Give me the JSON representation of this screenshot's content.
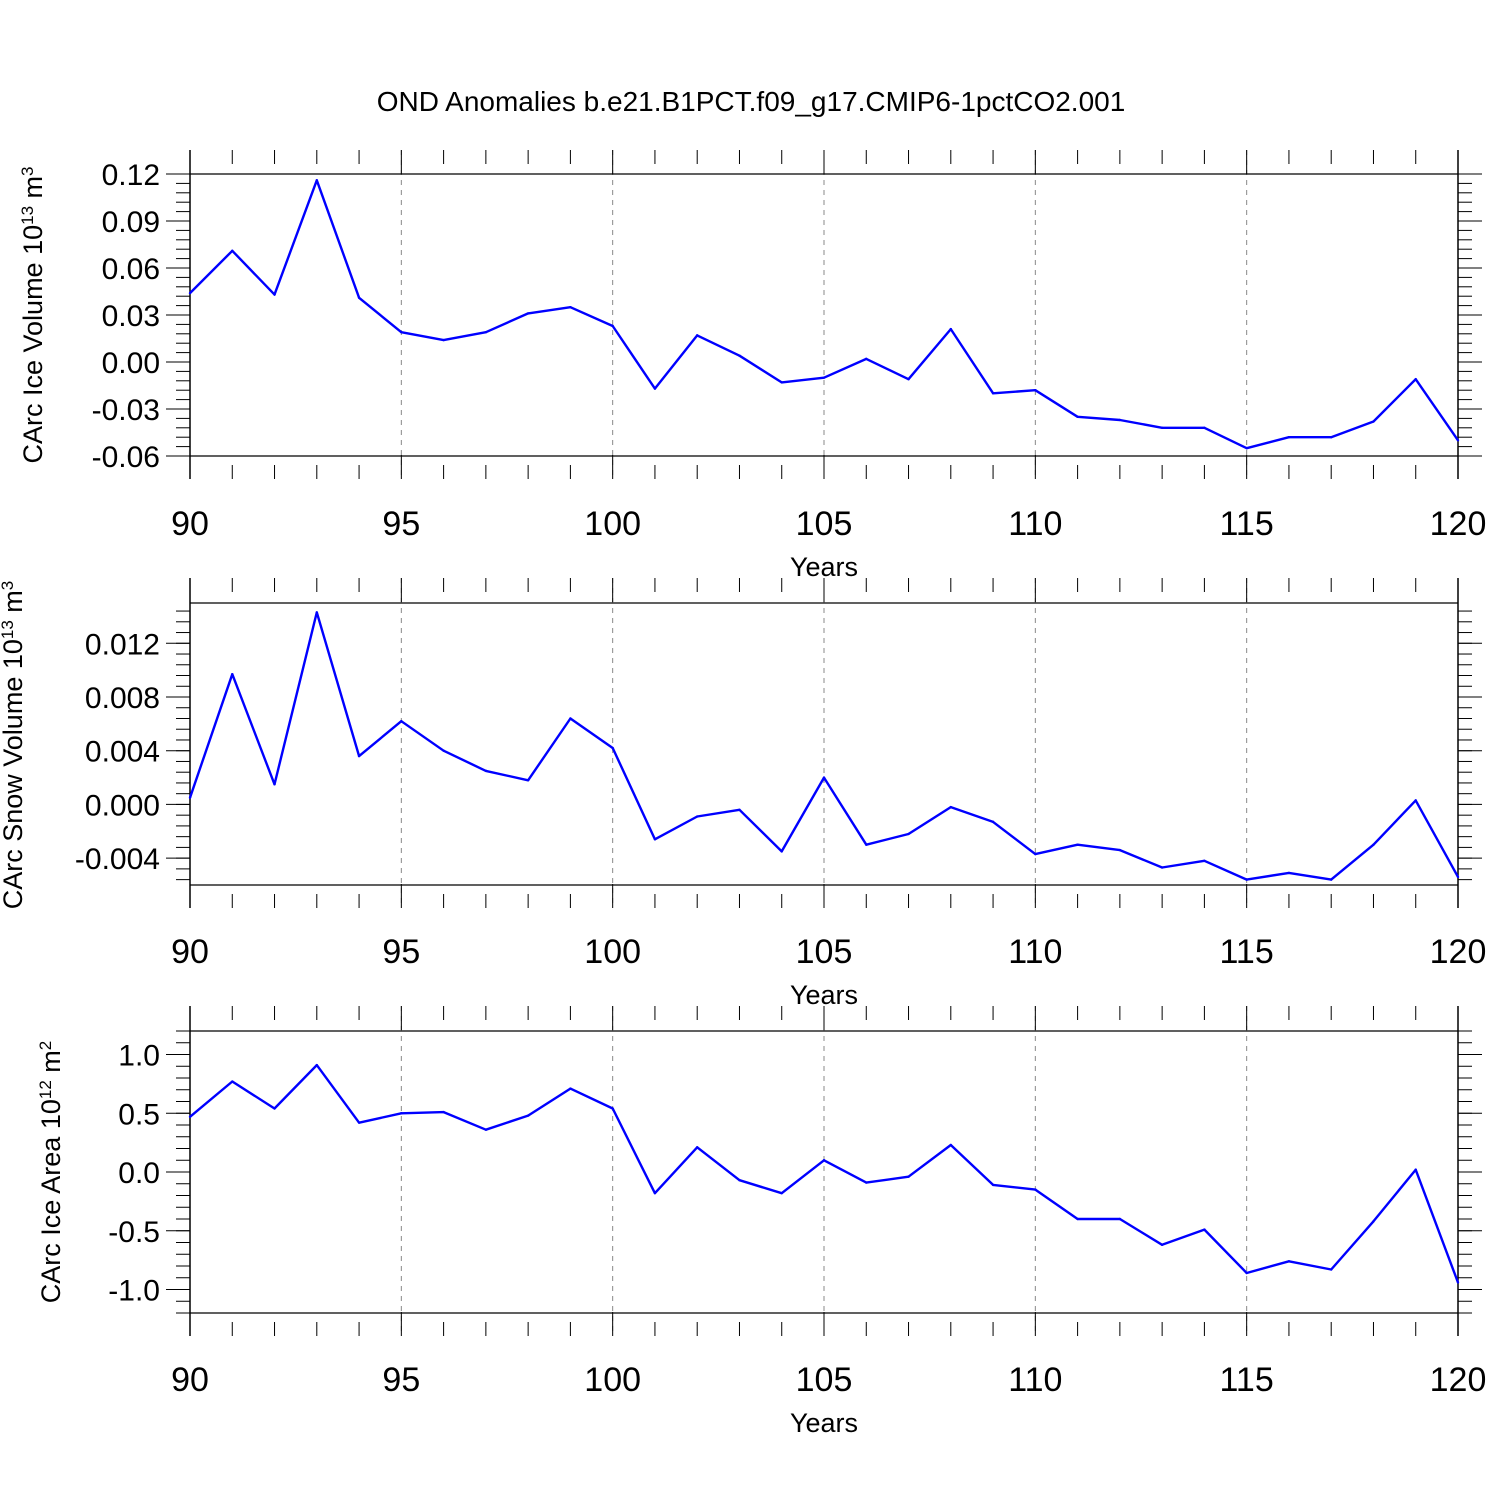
{
  "title": "OND Anomalies b.e21.B1PCT.f09_g17.CMIP6-1pctCO2.001",
  "colors": {
    "line": "#0000ff",
    "frame": "#000000",
    "grid": "#888888"
  },
  "chart_data": [
    {
      "type": "line",
      "xlabel": "Years",
      "ylabel": "CArc Ice Volume 10^13 m^3",
      "ylabel_parts": {
        "base": "CArc Ice Volume 10",
        "exp1": "13",
        "mid": " m",
        "exp2": "3"
      },
      "xlim": [
        90,
        120
      ],
      "ylim": [
        -0.06,
        0.12
      ],
      "x_ticks": [
        "90",
        "95",
        "100",
        "105",
        "110",
        "115",
        "120"
      ],
      "y_ticks": [
        "0.12",
        "0.09",
        "0.06",
        "0.03",
        "0.00",
        "-0.03",
        "-0.06"
      ],
      "vertical_grid": "dashed at x = 95, 100, 105, 110, 115",
      "x": [
        90,
        91,
        92,
        93,
        94,
        95,
        96,
        97,
        98,
        99,
        100,
        101,
        102,
        103,
        104,
        105,
        106,
        107,
        108,
        109,
        110,
        111,
        112,
        113,
        114,
        115,
        116,
        117,
        118,
        119,
        120
      ],
      "values": [
        0.044,
        0.071,
        0.043,
        0.116,
        0.041,
        0.019,
        0.014,
        0.019,
        0.031,
        0.035,
        0.023,
        -0.017,
        0.017,
        0.004,
        -0.013,
        -0.01,
        0.002,
        -0.011,
        0.021,
        -0.02,
        -0.018,
        -0.035,
        -0.037,
        -0.042,
        -0.042,
        -0.055,
        -0.048,
        -0.048,
        -0.038,
        -0.011,
        -0.05
      ]
    },
    {
      "type": "line",
      "xlabel": "Years",
      "ylabel": "CArc Snow Volume 10^13 m^3",
      "ylabel_parts": {
        "base": "CArc Snow Volume 10",
        "exp1": "13",
        "mid": " m",
        "exp2": "3"
      },
      "xlim": [
        90,
        120
      ],
      "ylim": [
        -0.006,
        0.015
      ],
      "x_ticks": [
        "90",
        "95",
        "100",
        "105",
        "110",
        "115",
        "120"
      ],
      "y_ticks": [
        "0.012",
        "0.008",
        "0.004",
        "0.000",
        "-0.004"
      ],
      "vertical_grid": "dashed at x = 95, 100, 105, 110, 115",
      "x": [
        90,
        91,
        92,
        93,
        94,
        95,
        96,
        97,
        98,
        99,
        100,
        101,
        102,
        103,
        104,
        105,
        106,
        107,
        108,
        109,
        110,
        111,
        112,
        113,
        114,
        115,
        116,
        117,
        118,
        119,
        120
      ],
      "values": [
        0.0005,
        0.0097,
        0.0015,
        0.0143,
        0.0036,
        0.0062,
        0.004,
        0.0025,
        0.0018,
        0.0064,
        0.0042,
        -0.0026,
        -0.0009,
        -0.0004,
        -0.0035,
        0.002,
        -0.003,
        -0.0022,
        -0.0002,
        -0.0013,
        -0.0037,
        -0.003,
        -0.0034,
        -0.0047,
        -0.0042,
        -0.0056,
        -0.0051,
        -0.0056,
        -0.003,
        0.0003,
        -0.0054
      ]
    },
    {
      "type": "line",
      "xlabel": "Years",
      "ylabel": "CArc Ice Area 10^12 m^2",
      "ylabel_parts": {
        "base": "CArc Ice Area 10",
        "exp1": "12",
        "mid": " m",
        "exp2": "2"
      },
      "xlim": [
        90,
        120
      ],
      "ylim": [
        -1.2,
        1.2
      ],
      "x_ticks": [
        "90",
        "95",
        "100",
        "105",
        "110",
        "115",
        "120"
      ],
      "y_ticks": [
        "1.0",
        "0.5",
        "0.0",
        "-0.5",
        "-1.0"
      ],
      "vertical_grid": "dashed at x = 95, 100, 105, 110, 115",
      "x": [
        90,
        91,
        92,
        93,
        94,
        95,
        96,
        97,
        98,
        99,
        100,
        101,
        102,
        103,
        104,
        105,
        106,
        107,
        108,
        109,
        110,
        111,
        112,
        113,
        114,
        115,
        116,
        117,
        118,
        119,
        120
      ],
      "values": [
        0.47,
        0.77,
        0.54,
        0.91,
        0.42,
        0.5,
        0.51,
        0.36,
        0.48,
        0.71,
        0.54,
        -0.18,
        0.21,
        -0.07,
        -0.18,
        0.1,
        -0.09,
        -0.04,
        0.23,
        -0.11,
        -0.15,
        -0.4,
        -0.4,
        -0.62,
        -0.49,
        -0.86,
        -0.76,
        -0.83,
        -0.42,
        0.02,
        -0.94
      ]
    }
  ]
}
